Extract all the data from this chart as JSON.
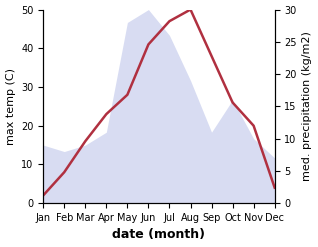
{
  "months": [
    "Jan",
    "Feb",
    "Mar",
    "Apr",
    "May",
    "Jun",
    "Jul",
    "Aug",
    "Sep",
    "Oct",
    "Nov",
    "Dec"
  ],
  "month_indices": [
    0,
    1,
    2,
    3,
    4,
    5,
    6,
    7,
    8,
    9,
    10,
    11
  ],
  "max_temp": [
    2,
    8,
    16,
    23,
    28,
    41,
    47,
    50,
    38,
    26,
    20,
    4
  ],
  "precipitation": [
    9,
    8,
    9,
    11,
    28,
    30,
    26,
    19,
    11,
    16,
    10,
    7
  ],
  "temp_color": "#b03040",
  "precip_fill_color": "#b8c0e8",
  "precip_alpha": 0.55,
  "temp_ylim": [
    0,
    50
  ],
  "precip_ylim": [
    0,
    30
  ],
  "temp_yticks": [
    0,
    10,
    20,
    30,
    40,
    50
  ],
  "precip_yticks": [
    0,
    5,
    10,
    15,
    20,
    25,
    30
  ],
  "ylabel_left": "max temp (C)",
  "ylabel_right": "med. precipitation (kg/m2)",
  "xlabel": "date (month)",
  "figsize": [
    3.18,
    2.47
  ],
  "dpi": 100,
  "xlabel_fontsize": 9,
  "ylabel_fontsize": 8,
  "tick_fontsize": 7
}
